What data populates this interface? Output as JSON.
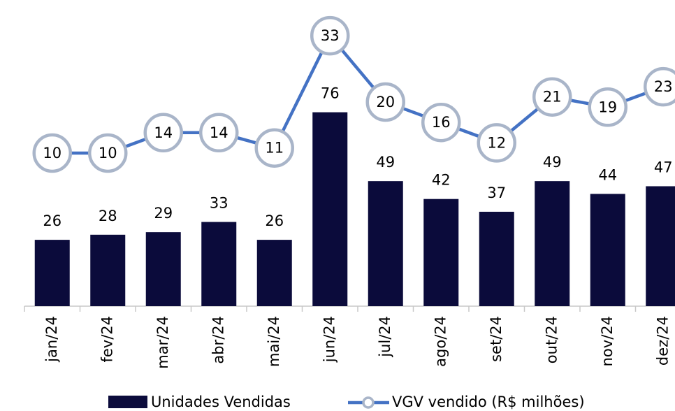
{
  "chart_data": {
    "type": "combo",
    "categories": [
      "jan/24",
      "fev/24",
      "mar/24",
      "abr/24",
      "mai/24",
      "jun/24",
      "jul/24",
      "ago/24",
      "set/24",
      "out/24",
      "nov/24",
      "dez/24"
    ],
    "series": [
      {
        "name": "Unidades Vendidas",
        "type": "bar",
        "color": "#0b0b3b",
        "values": [
          26,
          28,
          29,
          33,
          26,
          76,
          49,
          42,
          37,
          49,
          44,
          47
        ]
      },
      {
        "name": "VGV vendido (R$ milhões)",
        "type": "line",
        "axis": "y2",
        "color": "#4472c4",
        "marker_color": "#a9b5c9",
        "values": [
          10,
          10,
          14,
          14,
          11,
          33,
          20,
          16,
          12,
          21,
          19,
          23
        ]
      }
    ],
    "ylim": [
      0,
      120
    ],
    "y2lim": [
      -20,
      40
    ]
  }
}
